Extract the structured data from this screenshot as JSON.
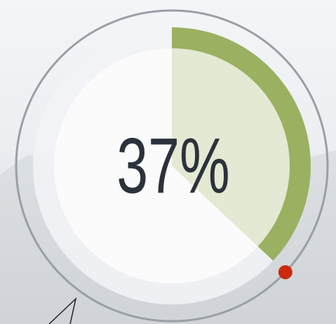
{
  "chart_data": {
    "type": "gauge",
    "values": [
      37
    ],
    "value_labels": [
      "37%"
    ],
    "ylim": [
      0,
      100
    ],
    "color": "#9bb060",
    "fill_color": "#e3e9d3",
    "marker_color": "#cc2a0e"
  }
}
